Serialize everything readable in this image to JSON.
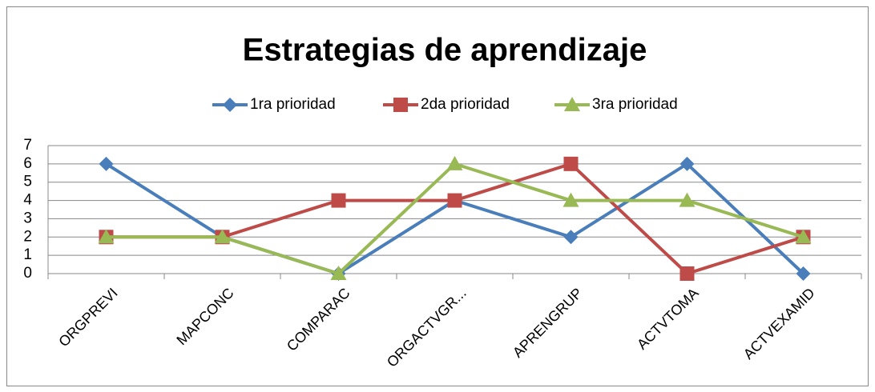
{
  "chart_data": {
    "type": "line",
    "title": "Estrategias de aprendizaje",
    "categories": [
      "ORGPREVI",
      "MAPCONC",
      "COMPARAC",
      "ORGACTVGR...",
      "APRENGRUP",
      "ACTVTOMA",
      "ACTVEXAMID"
    ],
    "series": [
      {
        "name": "1ra prioridad",
        "color": "#4a7ebb",
        "marker": "diamond",
        "values": [
          6,
          2,
          0,
          4,
          2,
          6,
          0
        ]
      },
      {
        "name": "2da prioridad",
        "color": "#be4b48",
        "marker": "square",
        "values": [
          2,
          2,
          4,
          4,
          6,
          0,
          2
        ]
      },
      {
        "name": "3ra prioridad",
        "color": "#98b954",
        "marker": "triangle",
        "values": [
          2,
          2,
          0,
          6,
          4,
          4,
          2
        ]
      }
    ],
    "ylim": [
      0,
      7
    ],
    "yticks": [
      0,
      1,
      2,
      3,
      4,
      5,
      6,
      7
    ],
    "grid": true,
    "legend": "top"
  }
}
